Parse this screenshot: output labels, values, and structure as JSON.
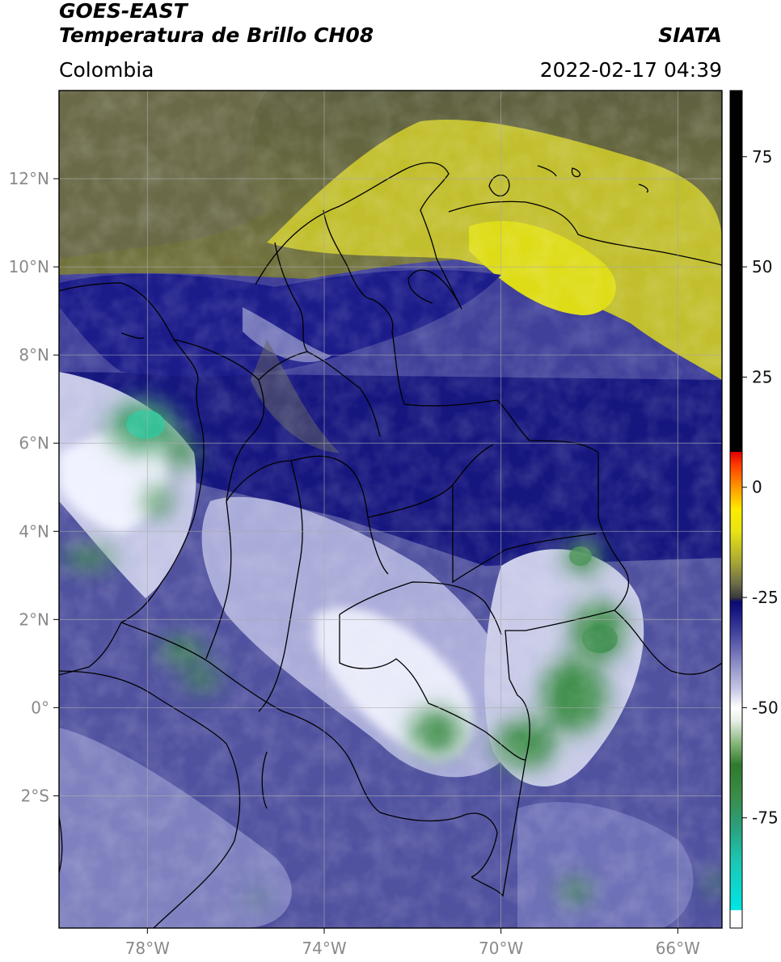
{
  "header": {
    "satellite": "GOES-EAST",
    "product": "Temperatura de Brillo CH08",
    "organization": "SIATA",
    "region": "Colombia",
    "timestamp": "2022-02-17 04:39"
  },
  "map": {
    "lon_range": [
      -80,
      -65
    ],
    "lat_range": [
      -5,
      14
    ],
    "lon_ticks": [
      {
        "value": -78,
        "label": "78°W"
      },
      {
        "value": -74,
        "label": "74°W"
      },
      {
        "value": -70,
        "label": "70°W"
      },
      {
        "value": -66,
        "label": "66°W"
      }
    ],
    "lat_ticks": [
      {
        "value": 12,
        "label": "12°N"
      },
      {
        "value": 10,
        "label": "10°N"
      },
      {
        "value": 8,
        "label": "8°N"
      },
      {
        "value": 6,
        "label": "6°N"
      },
      {
        "value": 4,
        "label": "4°N"
      },
      {
        "value": 2,
        "label": "2°N"
      },
      {
        "value": 0,
        "label": "0°"
      },
      {
        "value": -2,
        "label": "2°S"
      }
    ],
    "colors": {
      "dry_olive": "#6b6d3c",
      "yellow_band": "#c9c62a",
      "deep_blue": "#1a1a7c",
      "mid_blue": "#4a4aa0",
      "light_lavender": "#c9cae6",
      "cloud_green": "#4e8c45",
      "cloud_teal": "#2bb890"
    }
  },
  "colorbar": {
    "range": [
      -100,
      90
    ],
    "ticks": [
      {
        "value": 75,
        "label": "75"
      },
      {
        "value": 50,
        "label": "50"
      },
      {
        "value": 25,
        "label": "25"
      },
      {
        "value": 0,
        "label": "0"
      },
      {
        "value": -25,
        "label": "-25"
      },
      {
        "value": -50,
        "label": "-50"
      },
      {
        "value": -75,
        "label": "-75"
      }
    ],
    "stops": [
      {
        "value": -100,
        "color": "#ffffff"
      },
      {
        "value": -96,
        "color": "#ffffff"
      },
      {
        "value": -95.9,
        "color": "#00e6e6"
      },
      {
        "value": -85,
        "color": "#1cc7b4"
      },
      {
        "value": -77,
        "color": "#2aa07c"
      },
      {
        "value": -70,
        "color": "#3b8c48"
      },
      {
        "value": -63,
        "color": "#2f7a2c"
      },
      {
        "value": -58,
        "color": "#8ab77d"
      },
      {
        "value": -53,
        "color": "#e8eee6"
      },
      {
        "value": -50,
        "color": "#ffffff"
      },
      {
        "value": -46,
        "color": "#c8c9e6"
      },
      {
        "value": -40,
        "color": "#8c8dc6"
      },
      {
        "value": -34,
        "color": "#4b4ca4"
      },
      {
        "value": -28,
        "color": "#161683"
      },
      {
        "value": -26,
        "color": "#0a0a6e"
      },
      {
        "value": -25,
        "color": "#3a3a3a"
      },
      {
        "value": -22,
        "color": "#6a6a4a"
      },
      {
        "value": -17,
        "color": "#a8a634"
      },
      {
        "value": -10,
        "color": "#e8e414"
      },
      {
        "value": -5,
        "color": "#ffea00"
      },
      {
        "value": 0,
        "color": "#ff9800"
      },
      {
        "value": 5,
        "color": "#ff3d00"
      },
      {
        "value": 8,
        "color": "#e00000"
      },
      {
        "value": 8.1,
        "color": "#000000"
      },
      {
        "value": 90,
        "color": "#000000"
      }
    ]
  }
}
